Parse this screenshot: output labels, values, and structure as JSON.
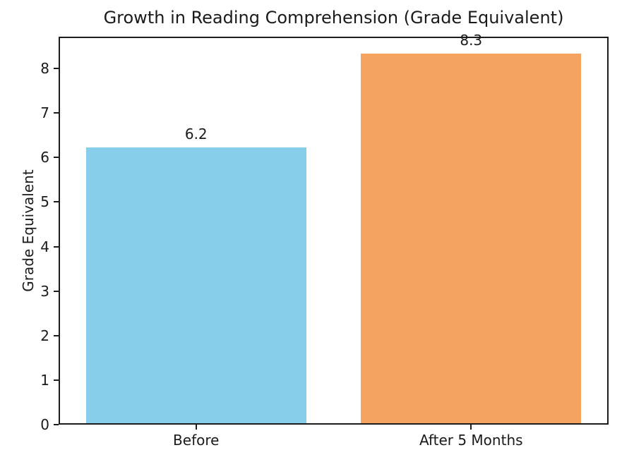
{
  "chart_data": {
    "type": "bar",
    "title": "Growth in Reading Comprehension (Grade Equivalent)",
    "xlabel": "",
    "ylabel": "Grade Equivalent",
    "categories": [
      "Before",
      "After 5 Months"
    ],
    "values": [
      6.2,
      8.3
    ],
    "bar_labels": [
      "6.2",
      "8.3"
    ],
    "bar_colors": [
      "#87CEEB",
      "#F4A460"
    ],
    "ylim": [
      0,
      8.715
    ],
    "yticks": [
      0,
      1,
      2,
      3,
      4,
      5,
      6,
      7,
      8
    ],
    "grid": false,
    "legend": null,
    "bar_width_fraction": 0.8,
    "spine_color": "#1c1c1c",
    "text_color": "#1a1a1a"
  }
}
